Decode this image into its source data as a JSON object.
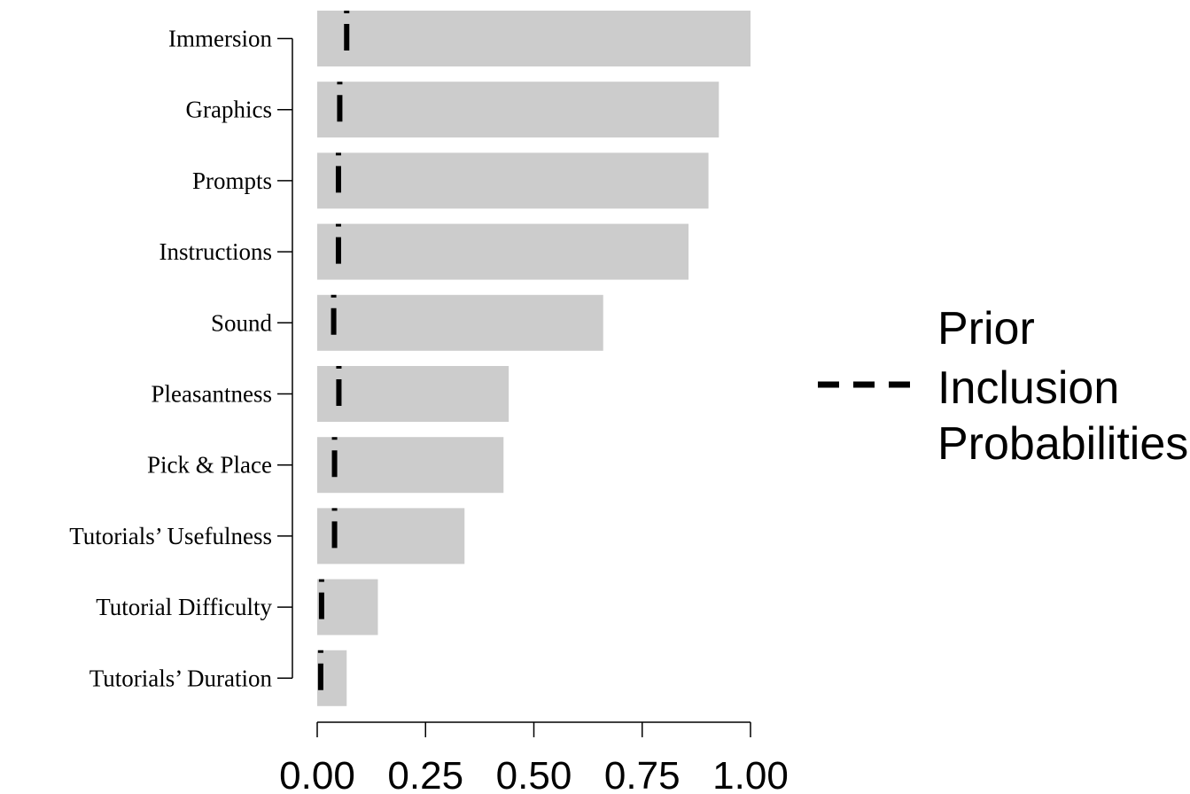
{
  "chart_data": {
    "type": "bar",
    "orientation": "horizontal",
    "categories": [
      "Immersion",
      "Graphics",
      "Prompts",
      "Instructions",
      "Sound",
      "Pleasantness",
      "Pick & Place",
      "Tutorials’ Usefulness",
      "Tutorial Difficulty",
      "Tutorials’ Duration"
    ],
    "values": [
      1.0,
      0.927,
      0.903,
      0.857,
      0.66,
      0.442,
      0.43,
      0.34,
      0.14,
      0.068
    ],
    "prior_values": [
      0.068,
      0.052,
      0.049,
      0.049,
      0.038,
      0.05,
      0.04,
      0.04,
      0.01,
      0.008
    ],
    "bar_color": "#cccccc",
    "prior_line_color": "#000000",
    "xlim": [
      0,
      1
    ],
    "xticks": [
      "0.00",
      "0.25",
      "0.50",
      "0.75",
      "1.00"
    ],
    "legend": {
      "position": "right",
      "lines": [
        "Prior",
        "Inclusion",
        "Probabilities"
      ]
    },
    "title": "",
    "xlabel": "",
    "ylabel": ""
  }
}
